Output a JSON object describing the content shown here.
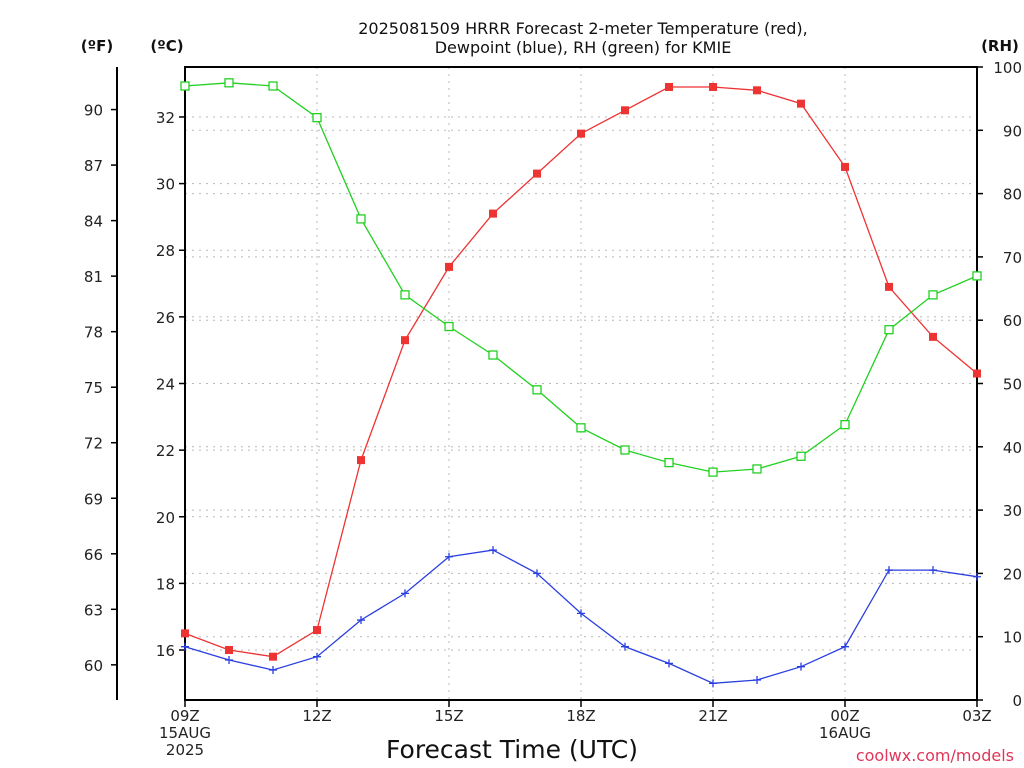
{
  "chart_data": {
    "type": "line",
    "title_lines": [
      "2025081509 HRRR Forecast 2-meter Temperature (red),",
      "Dewpoint (blue), RH (green) for KMIE"
    ],
    "xlabel": "Forecast Time (UTC)",
    "units": {
      "fahrenheit": "(ºF)",
      "celsius": "(ºC)",
      "rh": "(RH)"
    },
    "credit": "coolwx.com/models",
    "x_hours": [
      0,
      1,
      2,
      3,
      4,
      5,
      6,
      7,
      8,
      9,
      10,
      11,
      12,
      13,
      14,
      15,
      16,
      17,
      18
    ],
    "x_ticks": [
      {
        "hour": 0,
        "lines": [
          "09Z",
          "15AUG",
          "2025"
        ]
      },
      {
        "hour": 3,
        "lines": [
          "12Z"
        ]
      },
      {
        "hour": 6,
        "lines": [
          "15Z"
        ]
      },
      {
        "hour": 9,
        "lines": [
          "18Z"
        ]
      },
      {
        "hour": 12,
        "lines": [
          "21Z"
        ]
      },
      {
        "hour": 15,
        "lines": [
          "00Z",
          "16AUG"
        ]
      },
      {
        "hour": 18,
        "lines": [
          "03Z"
        ]
      }
    ],
    "xlim": [
      0,
      18
    ],
    "celsius_axis": {
      "ylim": [
        14.5,
        33.5
      ],
      "ticks": [
        16,
        18,
        20,
        22,
        24,
        26,
        28,
        30,
        32
      ]
    },
    "fahrenheit_axis": {
      "ticks": [
        60,
        63,
        66,
        69,
        72,
        75,
        78,
        81,
        84,
        87,
        90
      ]
    },
    "rh_axis": {
      "ylim": [
        0,
        100
      ],
      "ticks": [
        0,
        10,
        20,
        30,
        40,
        50,
        60,
        70,
        80,
        90,
        100
      ]
    },
    "grid": true,
    "series": [
      {
        "name": "Temperature",
        "axis": "celsius",
        "color": "#ee3333",
        "marker": "filled-square",
        "values": [
          16.5,
          16.0,
          15.8,
          16.6,
          21.7,
          25.3,
          27.5,
          29.1,
          30.3,
          31.5,
          32.2,
          32.9,
          32.9,
          32.8,
          32.4,
          30.5,
          26.9,
          25.4,
          24.3
        ]
      },
      {
        "name": "Dewpoint",
        "axis": "celsius",
        "color": "#2a3fe0",
        "marker": "plus",
        "values": [
          16.1,
          15.7,
          15.4,
          15.8,
          16.9,
          17.7,
          18.8,
          19.0,
          18.3,
          17.1,
          16.1,
          15.6,
          15.0,
          15.1,
          15.5,
          16.1,
          18.4,
          18.4,
          18.2
        ]
      },
      {
        "name": "RH",
        "axis": "rh",
        "color": "#22d022",
        "marker": "hollow-square",
        "values": [
          97,
          97.5,
          97,
          92,
          76,
          64,
          59,
          54.5,
          49,
          43,
          39.5,
          37.5,
          36,
          36.5,
          38.5,
          43.5,
          58.5,
          64,
          67
        ]
      }
    ]
  }
}
